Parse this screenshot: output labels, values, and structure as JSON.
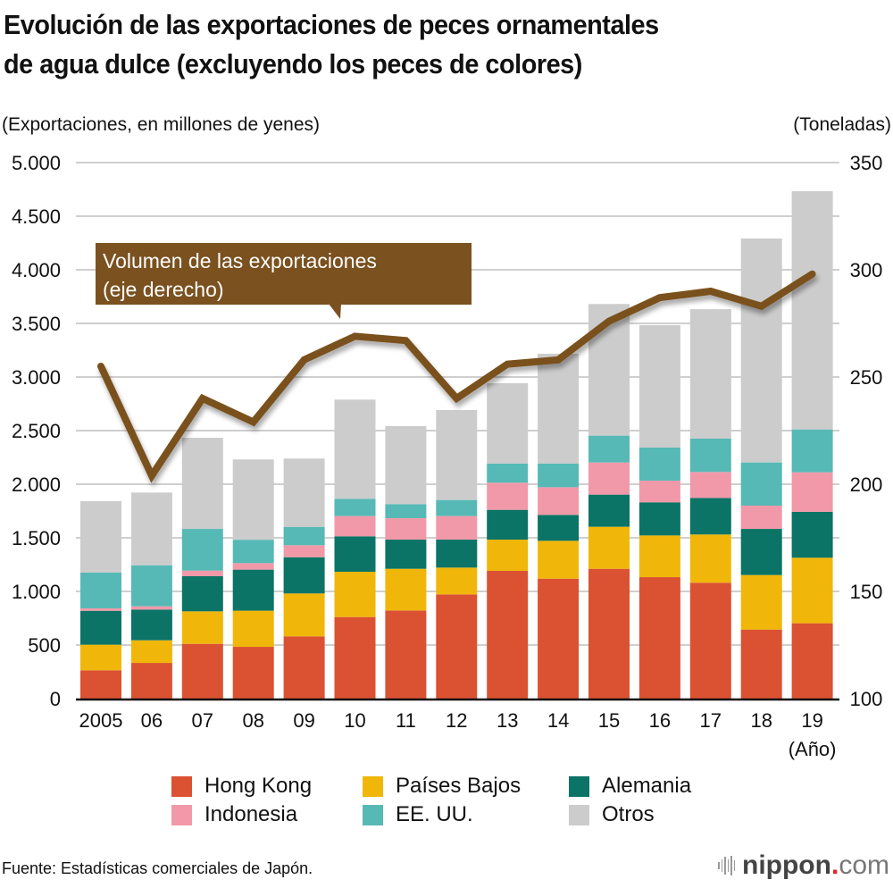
{
  "header": {
    "title_line1": "Evolución de las exportaciones de peces ornamentales",
    "title_line2": "de agua dulce (excluyendo los peces de colores)"
  },
  "footer": {
    "source": "Fuente: Estadísticas comerciales de Japón.",
    "logo_main": "nippon",
    "logo_dot": ".",
    "logo_suffix": "com"
  },
  "chart_data": {
    "type": "bar",
    "stacked": true,
    "title": "Evolución de las exportaciones de peces ornamentales de agua dulce (excluyendo los peces de colores)",
    "ylabel": "(Exportaciones, en millones de yenes)",
    "y2label": "(Toneladas)",
    "xlabel": "(Año)",
    "categories": [
      "2005",
      "06",
      "07",
      "08",
      "09",
      "10",
      "11",
      "12",
      "13",
      "14",
      "15",
      "16",
      "17",
      "18",
      "19"
    ],
    "ylim": [
      0,
      5000
    ],
    "yticks": [
      0,
      500,
      1000,
      1500,
      2000,
      2500,
      3000,
      3500,
      4000,
      4500,
      5000
    ],
    "ytick_labels": [
      "0",
      "500",
      "1.000",
      "1.500",
      "2.000",
      "2.500",
      "3.000",
      "3.500",
      "4.000",
      "4.500",
      "5.000"
    ],
    "y2lim": [
      100,
      350
    ],
    "y2ticks": [
      100,
      150,
      200,
      250,
      300,
      350
    ],
    "y2tick_labels": [
      "100",
      "150",
      "200",
      "250",
      "300",
      "350"
    ],
    "grid": true,
    "legend_position": "bottom",
    "series": [
      {
        "name": "Hong Kong",
        "color": "#db5232",
        "values": [
          264,
          333,
          511,
          483,
          581,
          761,
          822,
          972,
          1192,
          1119,
          1211,
          1133,
          1081,
          644,
          703
        ]
      },
      {
        "name": "Países Bajos",
        "color": "#f0b70a",
        "values": [
          239,
          211,
          303,
          337,
          400,
          422,
          389,
          250,
          291,
          353,
          392,
          389,
          450,
          509,
          611
        ]
      },
      {
        "name": "Alemania",
        "color": "#0b7466",
        "values": [
          316,
          287,
          328,
          383,
          338,
          331,
          272,
          261,
          278,
          242,
          300,
          309,
          341,
          430,
          428
        ]
      },
      {
        "name": "Indonesia",
        "color": "#f199a8",
        "values": [
          23,
          30,
          52,
          61,
          112,
          189,
          200,
          220,
          253,
          258,
          300,
          202,
          242,
          217,
          369
        ]
      },
      {
        "name": "EE. UU.",
        "color": "#56b9b6",
        "values": [
          333,
          383,
          389,
          218,
          169,
          161,
          131,
          150,
          178,
          220,
          250,
          309,
          311,
          403,
          400
        ]
      },
      {
        "name": "Otros",
        "color": "#cccccc",
        "values": [
          667,
          678,
          850,
          749,
          639,
          925,
          728,
          839,
          750,
          1025,
          1228,
          1141,
          1208,
          2089,
          2222
        ]
      }
    ],
    "line_series": {
      "name": "Volumen de las exportaciones (eje derecho)",
      "axis": "right",
      "color": "#7a511f",
      "values": [
        255,
        204,
        240,
        229,
        258,
        269,
        267,
        240,
        256,
        258,
        276,
        287,
        290,
        283,
        298
      ]
    },
    "annotation": {
      "line1": "Volumen de las exportaciones",
      "line2": "(eje derecho)"
    }
  }
}
